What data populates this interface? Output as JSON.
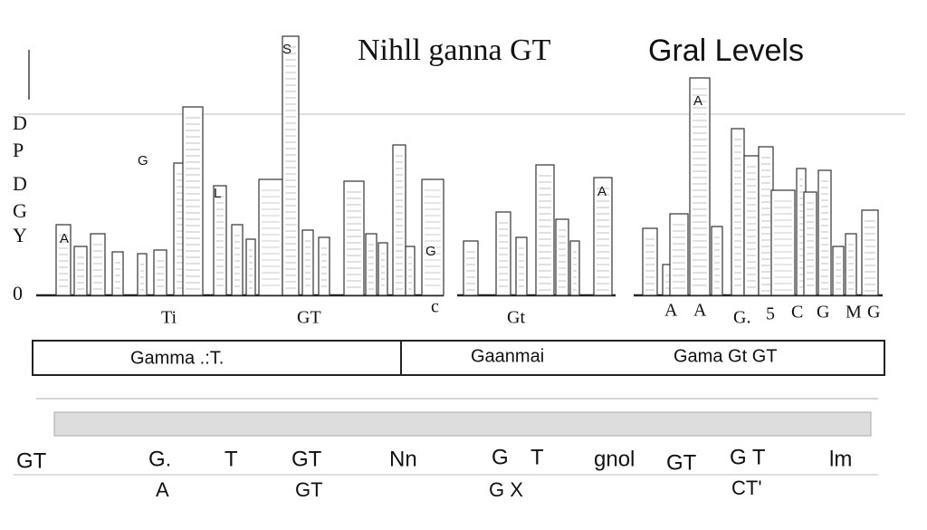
{
  "header": {
    "title": "Nihll ganna GT",
    "subtitle": "Gral Levels"
  },
  "y_axis_labels": [
    "D",
    "P",
    "D",
    "G",
    "Y",
    "0"
  ],
  "bar_labels": [
    "S",
    "G",
    "L",
    "A",
    "A",
    "G",
    "A"
  ],
  "x_labels": [
    "Ti",
    "GT",
    "c",
    "Gt",
    "A",
    "A",
    "G.",
    "5",
    "C",
    "G",
    "M",
    "G"
  ],
  "legend_box": [
    "Gamma .:T.",
    "Gaanmai",
    "Gama Gt GT"
  ],
  "bottom_row_1": [
    "GT",
    "G.",
    "T",
    "GT",
    "Nn",
    "G",
    "T",
    "gnol",
    "GT",
    "G T",
    "lm"
  ],
  "bottom_row_2": [
    "A",
    "GT",
    "G X",
    "CT'"
  ]
}
